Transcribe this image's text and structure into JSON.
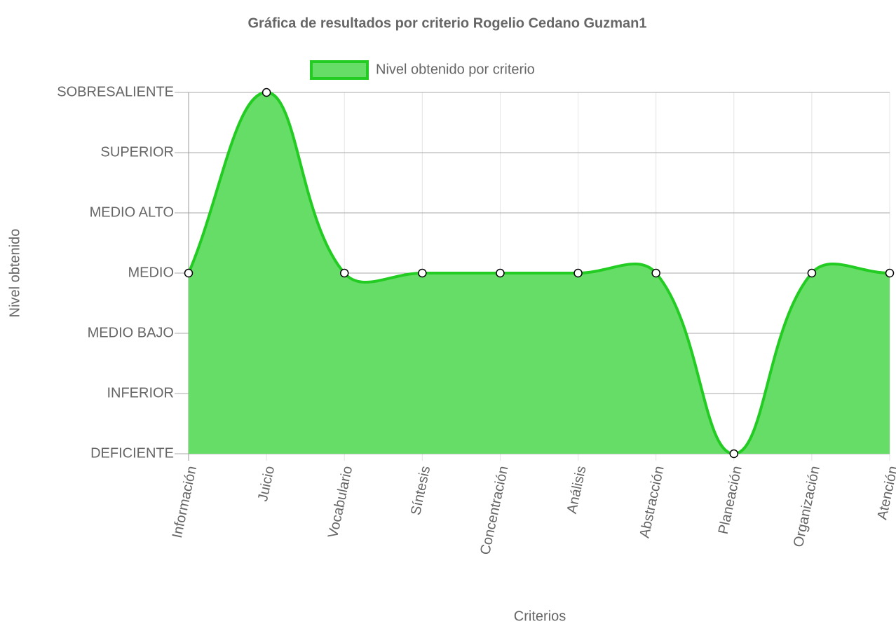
{
  "chart_data": {
    "type": "line",
    "title": "Gráfica de resultados por criterio Rogelio Cedano Guzman1",
    "x_label": "Criterios",
    "y_label": "Nivel obtenido",
    "categories": [
      "Información",
      "Juicio",
      "Vocabulario",
      "Síntesis",
      "Concentración",
      "Análisis",
      "Abstracción",
      "Planeación",
      "Organización",
      "Atención"
    ],
    "series": [
      {
        "name": "Nivel obtenido por criterio",
        "color": "#22cc22",
        "fill": "#66dd66",
        "values": [
          3,
          6,
          3,
          3,
          3,
          3,
          3,
          0,
          3,
          3
        ]
      }
    ],
    "ylim": [
      0,
      6
    ],
    "yticks": [
      {
        "value": 0,
        "label": "DEFICIENTE"
      },
      {
        "value": 1,
        "label": "INFERIOR"
      },
      {
        "value": 2,
        "label": "MEDIO BAJO"
      },
      {
        "value": 3,
        "label": "MEDIO"
      },
      {
        "value": 4,
        "label": "MEDIO ALTO"
      },
      {
        "value": 5,
        "label": "SUPERIOR"
      },
      {
        "value": 6,
        "label": "SOBRESALIENTE"
      }
    ],
    "grid": true,
    "legend": "top"
  }
}
